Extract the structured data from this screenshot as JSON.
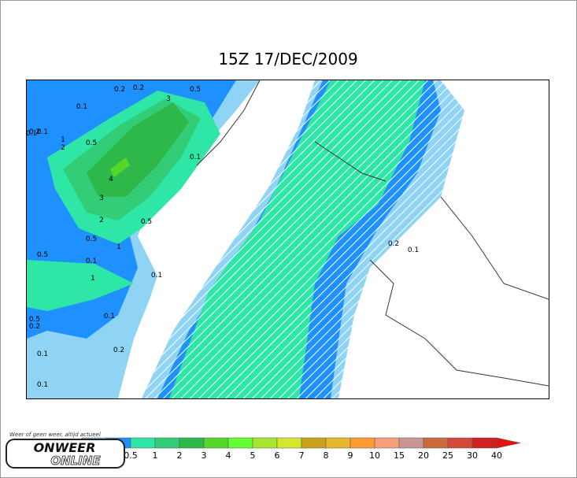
{
  "title": "15Z 17/DEC/2009",
  "colorbar": {
    "colors": [
      "#8fd3f5",
      "#1e90ff",
      "#2ee6a6",
      "#33cc77",
      "#2fb84a",
      "#55d62a",
      "#66ff33",
      "#a6e62e",
      "#d4e62e",
      "#c9a11a",
      "#e6b82e",
      "#ff9933",
      "#f5a07a",
      "#c99595",
      "#c96b3a",
      "#d44a3a",
      "#cc2222",
      "#e61111"
    ],
    "labels": [
      "0.5",
      "1",
      "2",
      "3",
      "4",
      "5",
      "6",
      "7",
      "8",
      "9",
      "10",
      "15",
      "20",
      "25",
      "30",
      "40"
    ]
  },
  "map": {
    "contour_labels": [
      "0.2",
      "0.2",
      "0.1",
      "0.5",
      "3",
      "0.1",
      "0.2",
      "0.1",
      "1",
      "2",
      "0.5",
      "4",
      "3",
      "0.1",
      "2",
      "0.5",
      "0.5",
      "0.1",
      "1",
      "0.1",
      "0.5",
      "1",
      "0.1",
      "0.5",
      "0.2",
      "0.1",
      "0.2",
      "0.1",
      "0.2",
      "0.1"
    ]
  },
  "logo": {
    "tagline": "Weer of geen weer, altijd actueel",
    "line1": "ONWEER",
    "line2": "ONLINE"
  }
}
